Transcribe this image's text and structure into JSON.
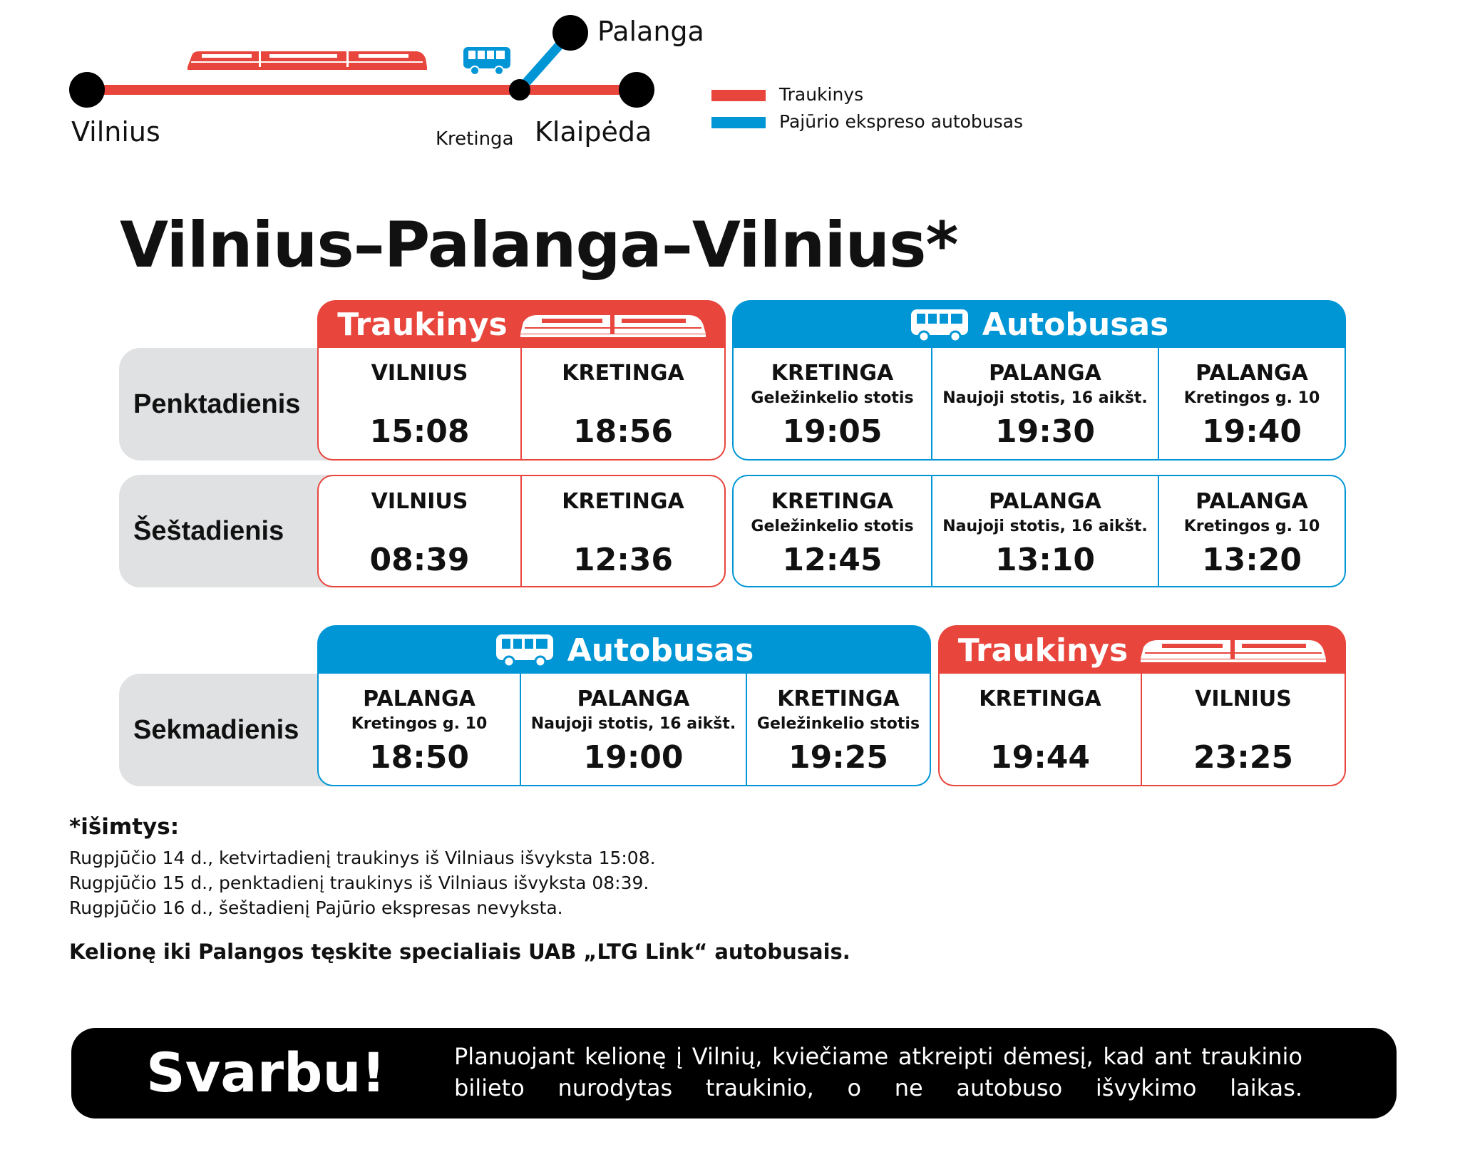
{
  "colors": {
    "train": "#e8453c",
    "bus": "#0096d6",
    "day_bg": "#dfe1e2",
    "banner": "#000000"
  },
  "map": {
    "stations": {
      "vilnius": "Vilnius",
      "kretinga": "Kretinga",
      "klaipeda": "Klaipėda",
      "palanga": "Palanga"
    },
    "icons": [
      "train-icon",
      "bus-icon"
    ]
  },
  "legend": [
    {
      "label": "Traukinys",
      "color": "#e8453c"
    },
    {
      "label": "Pajūrio ekspreso autobusas",
      "color": "#0096d6"
    }
  ],
  "title": "Vilnius–Palanga–Vilnius*",
  "table1": {
    "groups": [
      {
        "type": "train",
        "label": "Traukinys",
        "icon": "train-icon"
      },
      {
        "type": "bus",
        "label": "Autobusas",
        "icon": "bus-icon"
      }
    ],
    "rows": [
      {
        "day": "Penktadienis",
        "cells": [
          [
            {
              "station": "VILNIUS",
              "sub": "",
              "time": "15:08"
            },
            {
              "station": "KRETINGA",
              "sub": "",
              "time": "18:56"
            }
          ],
          [
            {
              "station": "KRETINGA",
              "sub": "Geležinkelio stotis",
              "time": "19:05"
            },
            {
              "station": "PALANGA",
              "sub": "Naujoji stotis, 16 aikšt.",
              "time": "19:30"
            },
            {
              "station": "PALANGA",
              "sub": "Kretingos g. 10",
              "time": "19:40"
            }
          ]
        ]
      },
      {
        "day": "Šeštadienis",
        "cells": [
          [
            {
              "station": "VILNIUS",
              "sub": "",
              "time": "08:39"
            },
            {
              "station": "KRETINGA",
              "sub": "",
              "time": "12:36"
            }
          ],
          [
            {
              "station": "KRETINGA",
              "sub": "Geležinkelio stotis",
              "time": "12:45"
            },
            {
              "station": "PALANGA",
              "sub": "Naujoji stotis, 16 aikšt.",
              "time": "13:10"
            },
            {
              "station": "PALANGA",
              "sub": "Kretingos g. 10",
              "time": "13:20"
            }
          ]
        ]
      }
    ]
  },
  "table2": {
    "groups": [
      {
        "type": "bus",
        "label": "Autobusas",
        "icon": "bus-icon"
      },
      {
        "type": "train",
        "label": "Traukinys",
        "icon": "train-icon"
      }
    ],
    "rows": [
      {
        "day": "Sekmadienis",
        "cells": [
          [
            {
              "station": "PALANGA",
              "sub": "Kretingos g. 10",
              "time": "18:50"
            },
            {
              "station": "PALANGA",
              "sub": "Naujoji stotis, 16 aikšt.",
              "time": "19:00"
            },
            {
              "station": "KRETINGA",
              "sub": "Geležinkelio stotis",
              "time": "19:25"
            }
          ],
          [
            {
              "station": "KRETINGA",
              "sub": "",
              "time": "19:44"
            },
            {
              "station": "VILNIUS",
              "sub": "",
              "time": "23:25"
            }
          ]
        ]
      }
    ]
  },
  "notes": {
    "heading": "*išimtys:",
    "lines": [
      "Rugpjūčio 14 d., ketvirtadienį traukinys iš Vilniaus išvyksta 15:08.",
      "Rugpjūčio 15 d., penktadienį traukinys iš Vilniaus išvyksta 08:39.",
      "Rugpjūčio 16 d., šeštadienį Pajūrio ekspresas nevyksta."
    ],
    "bold": "Kelionę iki Palangos tęskite specialiais UAB „LTG Link“  autobusais."
  },
  "banner": {
    "title": "Svarbu!",
    "text": "Planuojant kelionę į Vilnių, kviečiame atkreipti dėmesį, kad ant traukinio bilieto nurodytas traukinio, o ne autobuso išvykimo laikas."
  }
}
